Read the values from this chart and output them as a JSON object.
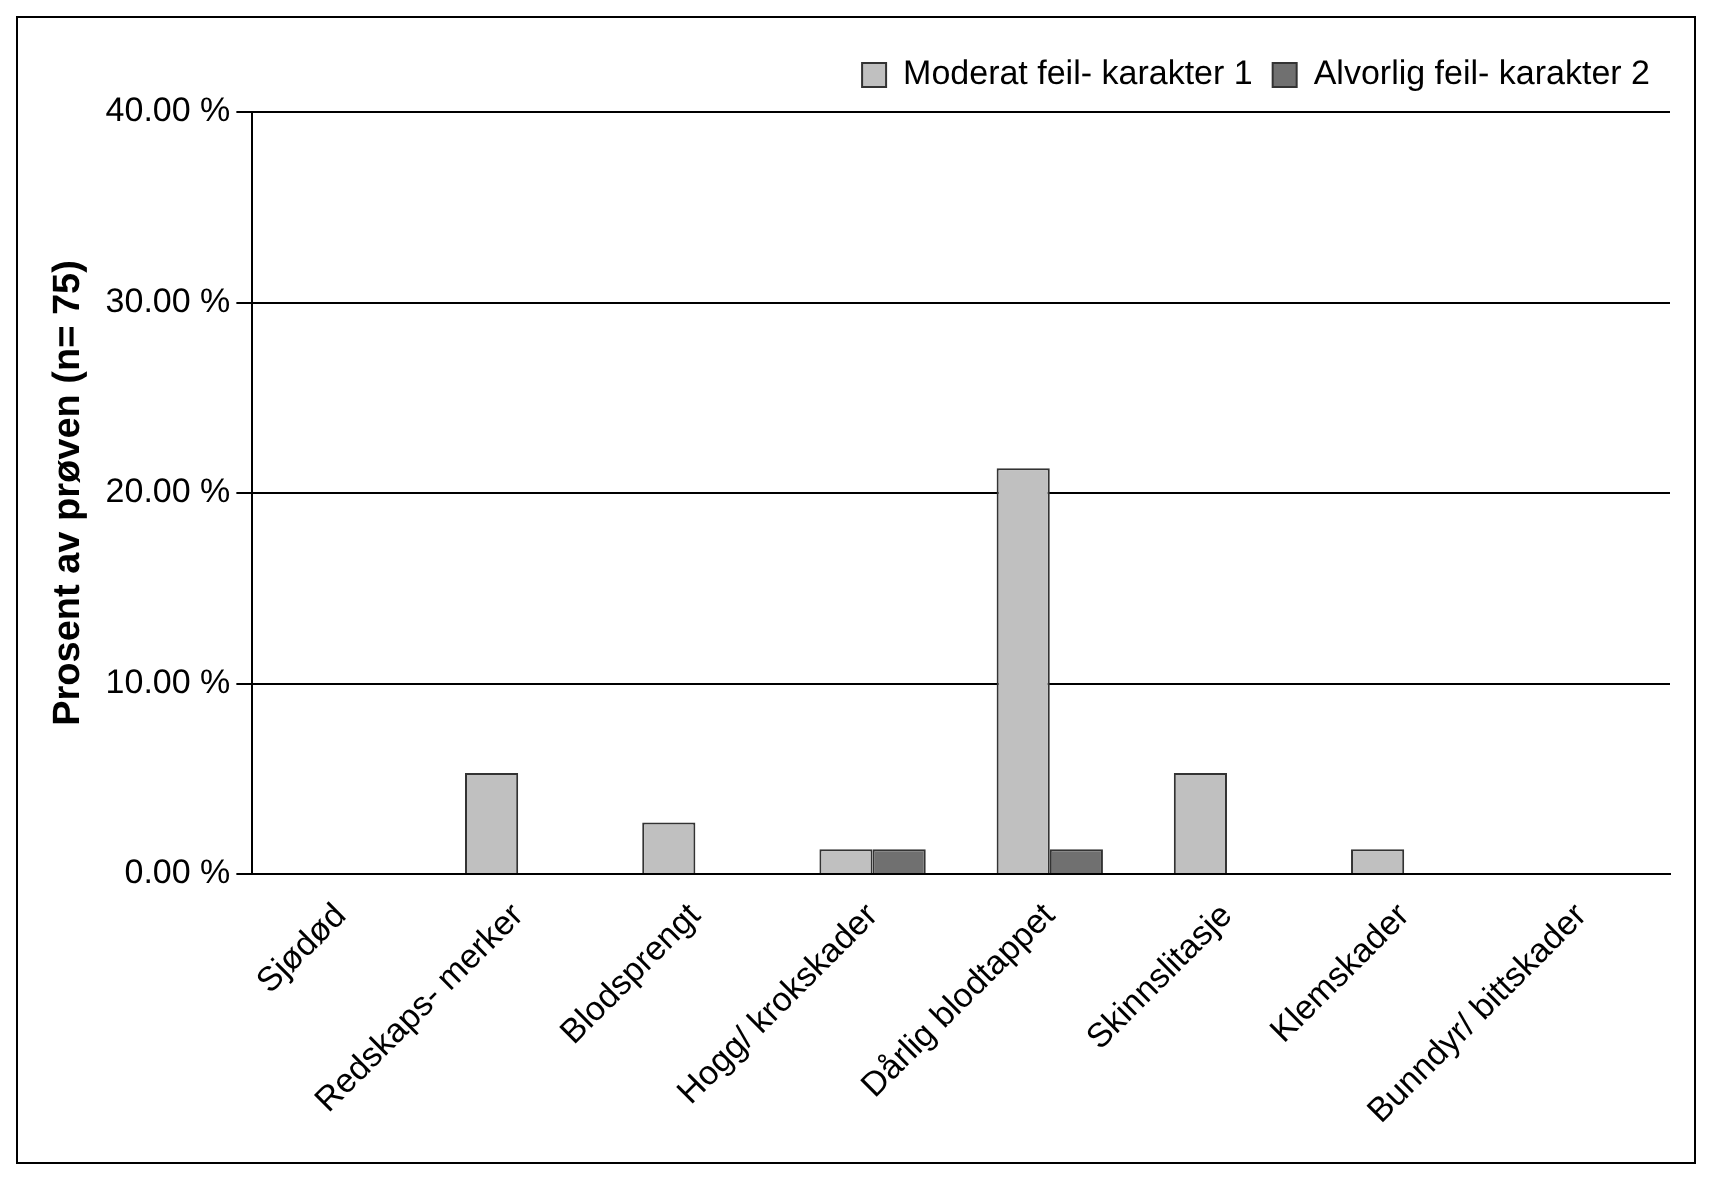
{
  "chart_data": {
    "type": "bar",
    "ylabel": "Prosent av prøven (n= 75)",
    "categories": [
      "Sjødød",
      "Redskaps- merker",
      "Blodsprengt",
      "Hogg/ krokskader",
      "Dårlig blodtappet",
      "Skinnslitasje",
      "Klemskader",
      "Bunndyr/ bittskader"
    ],
    "series": [
      {
        "name": "Moderat feil- karakter 1",
        "color": "#c0c0c0",
        "values": [
          0,
          5.3,
          2.7,
          1.3,
          21.3,
          5.3,
          1.3,
          0
        ]
      },
      {
        "name": "Alvorlig feil- karakter 2",
        "color": "#707070",
        "values": [
          0,
          0,
          0,
          1.3,
          1.3,
          0,
          0,
          0
        ]
      }
    ],
    "ylim": [
      0,
      40
    ],
    "yticks": [
      {
        "value": 0,
        "label": "0.00 %"
      },
      {
        "value": 10,
        "label": "10.00 %"
      },
      {
        "value": 20,
        "label": "20.00 %"
      },
      {
        "value": 30,
        "label": "30.00 %"
      },
      {
        "value": 40,
        "label": "40.00 %"
      }
    ],
    "grid": "y",
    "legend": "top right"
  }
}
